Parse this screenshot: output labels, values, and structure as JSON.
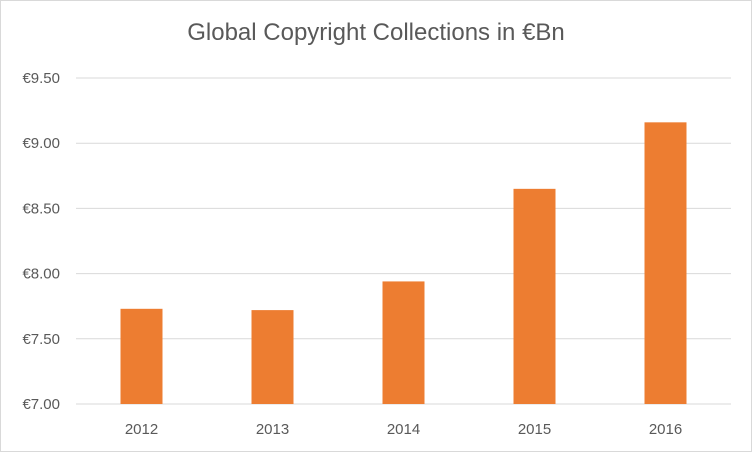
{
  "chart_data": {
    "type": "bar",
    "title": "Global Copyright Collections in €Bn",
    "xlabel": "",
    "ylabel": "",
    "categories": [
      "2012",
      "2013",
      "2014",
      "2015",
      "2016"
    ],
    "values": [
      7.73,
      7.72,
      7.94,
      8.65,
      9.16
    ],
    "ylim": [
      7.0,
      9.5
    ],
    "yticks": [
      "€7.00",
      "€7.50",
      "€8.00",
      "€8.50",
      "€9.00",
      "€9.50"
    ],
    "grid": true,
    "legend": "none",
    "bar_color": "#ED7D31",
    "grid_color": "#d9d9d9"
  }
}
